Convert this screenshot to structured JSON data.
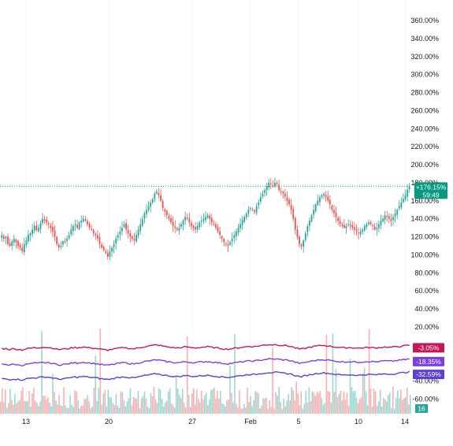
{
  "chart_data": {
    "type": "candlestick",
    "y_axis": {
      "unit": "%",
      "ticks": [
        "360.00%",
        "340.00%",
        "320.00%",
        "300.00%",
        "280.00%",
        "260.00%",
        "240.00%",
        "220.00%",
        "200.00%",
        "180.00%",
        "160.00%",
        "140.00%",
        "120.00%",
        "100.00%",
        "80.00%",
        "60.00%",
        "40.00%",
        "20.00%",
        "-40.00%",
        "-60.00%"
      ],
      "range": [
        -75,
        370
      ]
    },
    "x_axis": {
      "ticks": [
        "13",
        "20",
        "27",
        "Feb",
        "5",
        "10",
        "14"
      ]
    },
    "last_price": {
      "label": "+176.15%",
      "countdown": "59:49",
      "value": 176.15,
      "color": "#089981"
    },
    "main_series": {
      "name": "",
      "up_color": "#26a69a",
      "down_color": "#ef5350",
      "closes": [
        122,
        118,
        120,
        112,
        110,
        115,
        118,
        114,
        110,
        108,
        104,
        112,
        116,
        122,
        124,
        128,
        132,
        127,
        130,
        135,
        140,
        138,
        136,
        134,
        130,
        126,
        120,
        112,
        108,
        110,
        115,
        114,
        118,
        122,
        128,
        132,
        134,
        130,
        136,
        138,
        140,
        138,
        134,
        130,
        128,
        124,
        122,
        118,
        112,
        108,
        105,
        102,
        98,
        104,
        108,
        112,
        118,
        122,
        126,
        130,
        134,
        128,
        124,
        120,
        118,
        116,
        122,
        128,
        134,
        140,
        146,
        150,
        154,
        158,
        162,
        168,
        170,
        166,
        160,
        152,
        148,
        144,
        140,
        136,
        132,
        130,
        128,
        130,
        134,
        138,
        142,
        140,
        136,
        132,
        130,
        128,
        132,
        136,
        138,
        140,
        142,
        144,
        140,
        136,
        134,
        130,
        126,
        122,
        118,
        114,
        112,
        110,
        114,
        118,
        122,
        126,
        130,
        134,
        138,
        142,
        146,
        150,
        152,
        150,
        148,
        154,
        158,
        164,
        168,
        172,
        176,
        180,
        178,
        176,
        180,
        178,
        172,
        170,
        168,
        165,
        160,
        156,
        150,
        140,
        128,
        120,
        112,
        110,
        116,
        124,
        132,
        138,
        144,
        150,
        156,
        160,
        164,
        166,
        168,
        164,
        160,
        156,
        150,
        146,
        142,
        138,
        134,
        132,
        130,
        132,
        134,
        132,
        130,
        128,
        126,
        124,
        126,
        128,
        132,
        134,
        136,
        134,
        132,
        128,
        130,
        134,
        138,
        140,
        144,
        142,
        140,
        138,
        142,
        146,
        150,
        154,
        158,
        162,
        166,
        172,
        176
      ]
    },
    "indicators": [
      {
        "label": "-3.05%",
        "value": -3.05,
        "color": "#c2185b"
      },
      {
        "label": "-18.35%",
        "value": -18.35,
        "color": "#7b3fe4"
      },
      {
        "label": "-32.59%",
        "value": -32.59,
        "color": "#5b3fd9"
      }
    ],
    "volume": {
      "last_label": "16",
      "color": "#26a69a"
    },
    "grid": false
  }
}
